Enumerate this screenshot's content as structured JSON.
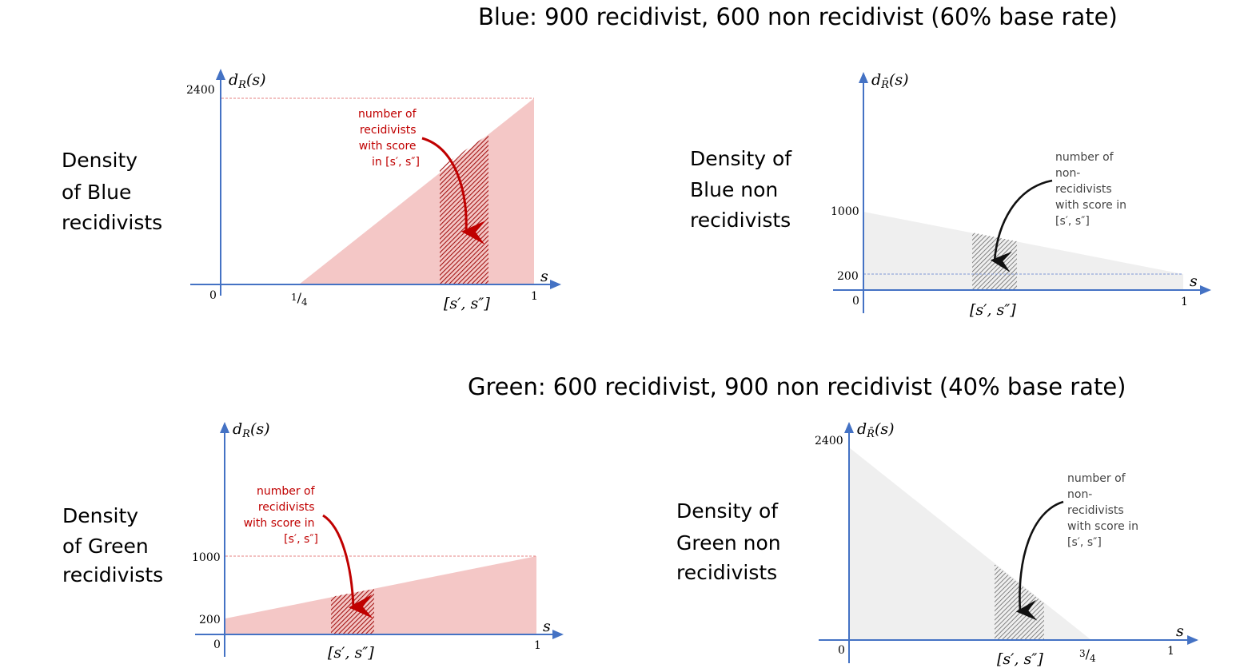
{
  "titles": {
    "blue": "Blue: 900 recidivist, 600 non recidivist (60% base rate)",
    "green": "Green: 600 recidivist, 900 non recidivist (40% base rate)"
  },
  "panels": [
    {
      "id": "blue-recid",
      "side_label": [
        "Density",
        "of Blue",
        "recidivists"
      ],
      "y_axis_label": "d_R(s)",
      "y_ticks": [
        "2400"
      ],
      "x_ticks": [
        "0",
        "1/4",
        "1"
      ],
      "x_var": "s",
      "interval_label": "[s′, s″]",
      "note": [
        "number of",
        "recidivists",
        "with score",
        "in [s′, s″]"
      ],
      "color": "#f4c7c6",
      "hatch_color": "#a31414"
    },
    {
      "id": "blue-nonrecid",
      "side_label": [
        "Density of",
        "Blue non",
        "recidivists"
      ],
      "y_axis_label": "d_R̄(s)",
      "y_ticks": [
        "1000",
        "200"
      ],
      "x_ticks": [
        "0",
        "1"
      ],
      "x_var": "s",
      "interval_label": "[s′, s″]",
      "note": [
        "number of",
        "non-",
        "recidivists",
        "with score in",
        "[s′, s″]"
      ],
      "color": "#efefef",
      "hatch_color": "#555555"
    },
    {
      "id": "green-recid",
      "side_label": [
        "Density",
        "of Green",
        "recidivists"
      ],
      "y_axis_label": "d_R(s)",
      "y_ticks": [
        "1000",
        "200"
      ],
      "x_ticks": [
        "0",
        "1"
      ],
      "x_var": "s",
      "interval_label": "[s′, s″]",
      "note": [
        "number of",
        "recidivists",
        "with score in",
        "[s′, s″]"
      ],
      "color": "#f4c7c6",
      "hatch_color": "#a31414"
    },
    {
      "id": "green-nonrecid",
      "side_label": [
        "Density of",
        "Green non",
        "recidivists"
      ],
      "y_axis_label": "d_R̄(s)",
      "y_ticks": [
        "2400"
      ],
      "x_ticks": [
        "0",
        "3/4",
        "1"
      ],
      "x_var": "s",
      "interval_label": "[s′, s″]",
      "note": [
        "number of",
        "non-",
        "recidivists",
        "with score in",
        "[s′, s″]"
      ],
      "color": "#efefef",
      "hatch_color": "#555555"
    }
  ],
  "arrow_colors": {
    "red": "#c00000",
    "black": "#111111"
  }
}
